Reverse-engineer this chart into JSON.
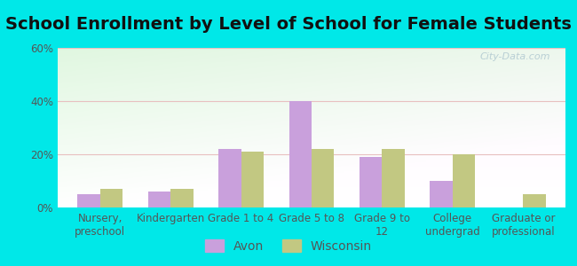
{
  "title": "School Enrollment by Level of School for Female Students",
  "categories": [
    "Nursery,\npreschool",
    "Kindergarten",
    "Grade 1 to 4",
    "Grade 5 to 8",
    "Grade 9 to\n12",
    "College\nundergrad",
    "Graduate or\nprofessional"
  ],
  "avon_values": [
    5,
    6,
    22,
    40,
    19,
    10,
    0
  ],
  "wisconsin_values": [
    7,
    7,
    21,
    22,
    22,
    20,
    5
  ],
  "avon_color": "#c9a0dc",
  "wisconsin_color": "#c2c882",
  "background_color": "#00e8e8",
  "plot_bg": "#e8f5e0",
  "ylim": [
    0,
    60
  ],
  "yticks": [
    0,
    20,
    40,
    60
  ],
  "ytick_labels": [
    "0%",
    "20%",
    "40%",
    "60%"
  ],
  "title_fontsize": 14,
  "tick_fontsize": 8.5,
  "legend_fontsize": 10,
  "bar_width": 0.32,
  "legend_labels": [
    "Avon",
    "Wisconsin"
  ],
  "watermark": "City-Data.com"
}
